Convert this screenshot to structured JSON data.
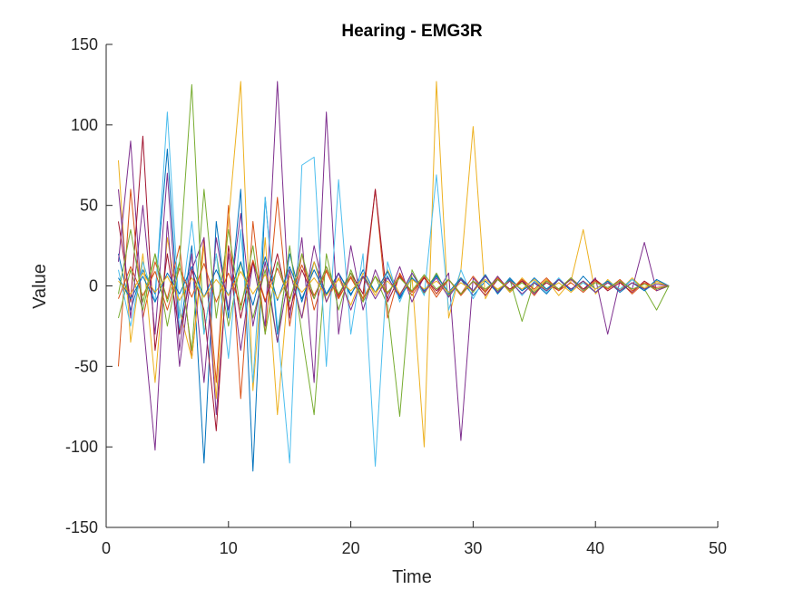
{
  "chart_data": {
    "type": "line",
    "title": "Hearing - EMG3R",
    "xlabel": "Time",
    "ylabel": "Value",
    "xlim": [
      0,
      50
    ],
    "ylim": [
      -150,
      150
    ],
    "xticks": [
      "0",
      "10",
      "20",
      "30",
      "40",
      "50"
    ],
    "yticks": [
      "-150",
      "-100",
      "-50",
      "0",
      "50",
      "100",
      "150"
    ],
    "grid": false,
    "legend": "none",
    "palette": [
      "#0072BD",
      "#D95319",
      "#EDB120",
      "#7E2F8E",
      "#77AC30",
      "#4DBEEE",
      "#A2142F"
    ],
    "x": [
      1,
      2,
      3,
      4,
      5,
      6,
      7,
      8,
      9,
      10,
      11,
      12,
      13,
      14,
      15,
      16,
      17,
      18,
      19,
      20,
      21,
      22,
      23,
      24,
      25,
      26,
      27,
      28,
      29,
      30,
      31,
      32,
      33,
      34,
      35,
      36,
      37,
      38,
      39,
      40,
      41,
      42,
      43,
      44,
      45,
      46
    ],
    "series": [
      {
        "values": [
          20,
          -15,
          10,
          -5,
          85,
          -30,
          25,
          -110,
          40,
          -20,
          60,
          -115,
          55,
          -30,
          20,
          -10,
          15,
          -5,
          8,
          -6,
          10,
          -4,
          6,
          -8,
          5,
          -3,
          7,
          -5,
          4,
          -6,
          3,
          -4,
          5,
          -3,
          2,
          -5,
          4,
          -2,
          3,
          -4,
          2,
          -3,
          4,
          -2,
          3,
          0
        ]
      },
      {
        "values": [
          -50,
          60,
          -20,
          15,
          -8,
          25,
          -45,
          30,
          -60,
          50,
          -70,
          40,
          -30,
          55,
          -25,
          20,
          -15,
          10,
          -8,
          6,
          -10,
          60,
          -20,
          8,
          -6,
          5,
          -7,
          4,
          -5,
          6,
          -3,
          5,
          -4,
          3,
          -6,
          4,
          -2,
          5,
          -3,
          4,
          -2,
          3,
          -5,
          2,
          -3,
          0
        ]
      },
      {
        "values": [
          78,
          -35,
          20,
          -60,
          30,
          -15,
          -45,
          25,
          -70,
          40,
          127,
          -65,
          30,
          -80,
          10,
          -20,
          15,
          -10,
          5,
          -12,
          8,
          -6,
          10,
          -5,
          6,
          -100,
          127,
          -20,
          10,
          99,
          -8,
          6,
          -4,
          5,
          -3,
          4,
          -6,
          3,
          35,
          -5,
          4,
          -3,
          5,
          -2,
          3,
          0
        ]
      },
      {
        "values": [
          15,
          90,
          -20,
          -102,
          40,
          -50,
          10,
          30,
          -80,
          20,
          -40,
          15,
          -25,
          127,
          -20,
          30,
          -60,
          108,
          -30,
          25,
          -15,
          10,
          -8,
          12,
          -10,
          6,
          -5,
          8,
          -96,
          5,
          -4,
          6,
          -3,
          4,
          -5,
          3,
          -2,
          4,
          -3,
          5,
          -30,
          3,
          -2,
          27,
          -3,
          0
        ]
      },
      {
        "values": [
          -20,
          10,
          -15,
          20,
          -10,
          15,
          125,
          -30,
          20,
          -25,
          15,
          -20,
          10,
          -35,
          25,
          -30,
          -80,
          20,
          -15,
          10,
          -8,
          6,
          -12,
          -81,
          10,
          -5,
          8,
          -6,
          5,
          -4,
          6,
          -3,
          4,
          -22,
          3,
          -2,
          4,
          -3,
          2,
          -4,
          3,
          -2,
          4,
          -2,
          -15,
          0
        ]
      },
      {
        "values": [
          10,
          -25,
          15,
          -10,
          108,
          -20,
          40,
          -30,
          20,
          -45,
          35,
          -60,
          55,
          -25,
          -110,
          75,
          80,
          -50,
          66,
          -30,
          20,
          -112,
          15,
          -10,
          8,
          -6,
          69,
          -15,
          10,
          -8,
          6,
          -5,
          4,
          -6,
          3,
          -4,
          5,
          -3,
          2,
          -4,
          3,
          -2,
          4,
          -3,
          2,
          0
        ]
      },
      {
        "values": [
          40,
          -10,
          93,
          -40,
          20,
          -30,
          10,
          -15,
          -90,
          25,
          -20,
          15,
          -10,
          20,
          -15,
          10,
          -8,
          12,
          -6,
          8,
          -5,
          60,
          -10,
          6,
          -4,
          5,
          -3,
          4,
          -5,
          3,
          -6,
          4,
          -2,
          3,
          -4,
          2,
          -3,
          5,
          -2,
          4,
          -3,
          2,
          -4,
          3,
          -2,
          0
        ]
      },
      {
        "values": [
          5,
          -8,
          6,
          -10,
          8,
          -5,
          12,
          -7,
          10,
          -6,
          15,
          -12,
          18,
          -9,
          12,
          -8,
          10,
          -6,
          8,
          -5,
          6,
          -4,
          9,
          -7,
          5,
          -3,
          6,
          -4,
          5,
          -3,
          7,
          -5,
          4,
          -3,
          5,
          -2,
          4,
          -3,
          6,
          -2,
          3,
          -4,
          2,
          -3,
          4,
          0
        ]
      },
      {
        "values": [
          -8,
          12,
          -6,
          9,
          -15,
          11,
          -7,
          14,
          -10,
          8,
          -12,
          16,
          -9,
          11,
          -8,
          13,
          -6,
          9,
          -7,
          5,
          -8,
          6,
          -5,
          7,
          -4,
          6,
          -5,
          4,
          -6,
          3,
          -4,
          5,
          -3,
          4,
          -2,
          5,
          -3,
          2,
          -4,
          3,
          -2,
          4,
          -3,
          2,
          -1,
          0
        ]
      },
      {
        "values": [
          3,
          -5,
          8,
          -4,
          6,
          -9,
          5,
          -7,
          4,
          -6,
          9,
          -5,
          7,
          -8,
          6,
          -4,
          5,
          -6,
          4,
          -3,
          5,
          -4,
          3,
          -5,
          4,
          -2,
          3,
          -4,
          2,
          -3,
          4,
          -2,
          3,
          -2,
          4,
          -3,
          2,
          -4,
          3,
          -2,
          2,
          -3,
          2,
          -1,
          2,
          0
        ]
      },
      {
        "values": [
          60,
          -20,
          50,
          -30,
          70,
          -40,
          20,
          -60,
          30,
          -15,
          45,
          -25,
          15,
          -35,
          10,
          -20,
          25,
          -10,
          8,
          -15,
          6,
          -8,
          5,
          -6,
          8,
          -4,
          5,
          -7,
          4,
          -3,
          6,
          -4,
          3,
          -5,
          2,
          -3,
          4,
          -2,
          3,
          -4,
          2,
          -3,
          2,
          -2,
          1,
          0
        ]
      },
      {
        "values": [
          -5,
          35,
          -10,
          20,
          -25,
          15,
          -40,
          60,
          -20,
          35,
          -15,
          25,
          -30,
          15,
          -10,
          20,
          -8,
          12,
          -5,
          8,
          -10,
          6,
          -4,
          5,
          -3,
          7,
          -2,
          4,
          -5,
          3,
          -2,
          4,
          -3,
          2,
          -4,
          3,
          -2,
          5,
          -3,
          2,
          -1,
          3,
          -2,
          1,
          -2,
          0
        ]
      }
    ]
  }
}
